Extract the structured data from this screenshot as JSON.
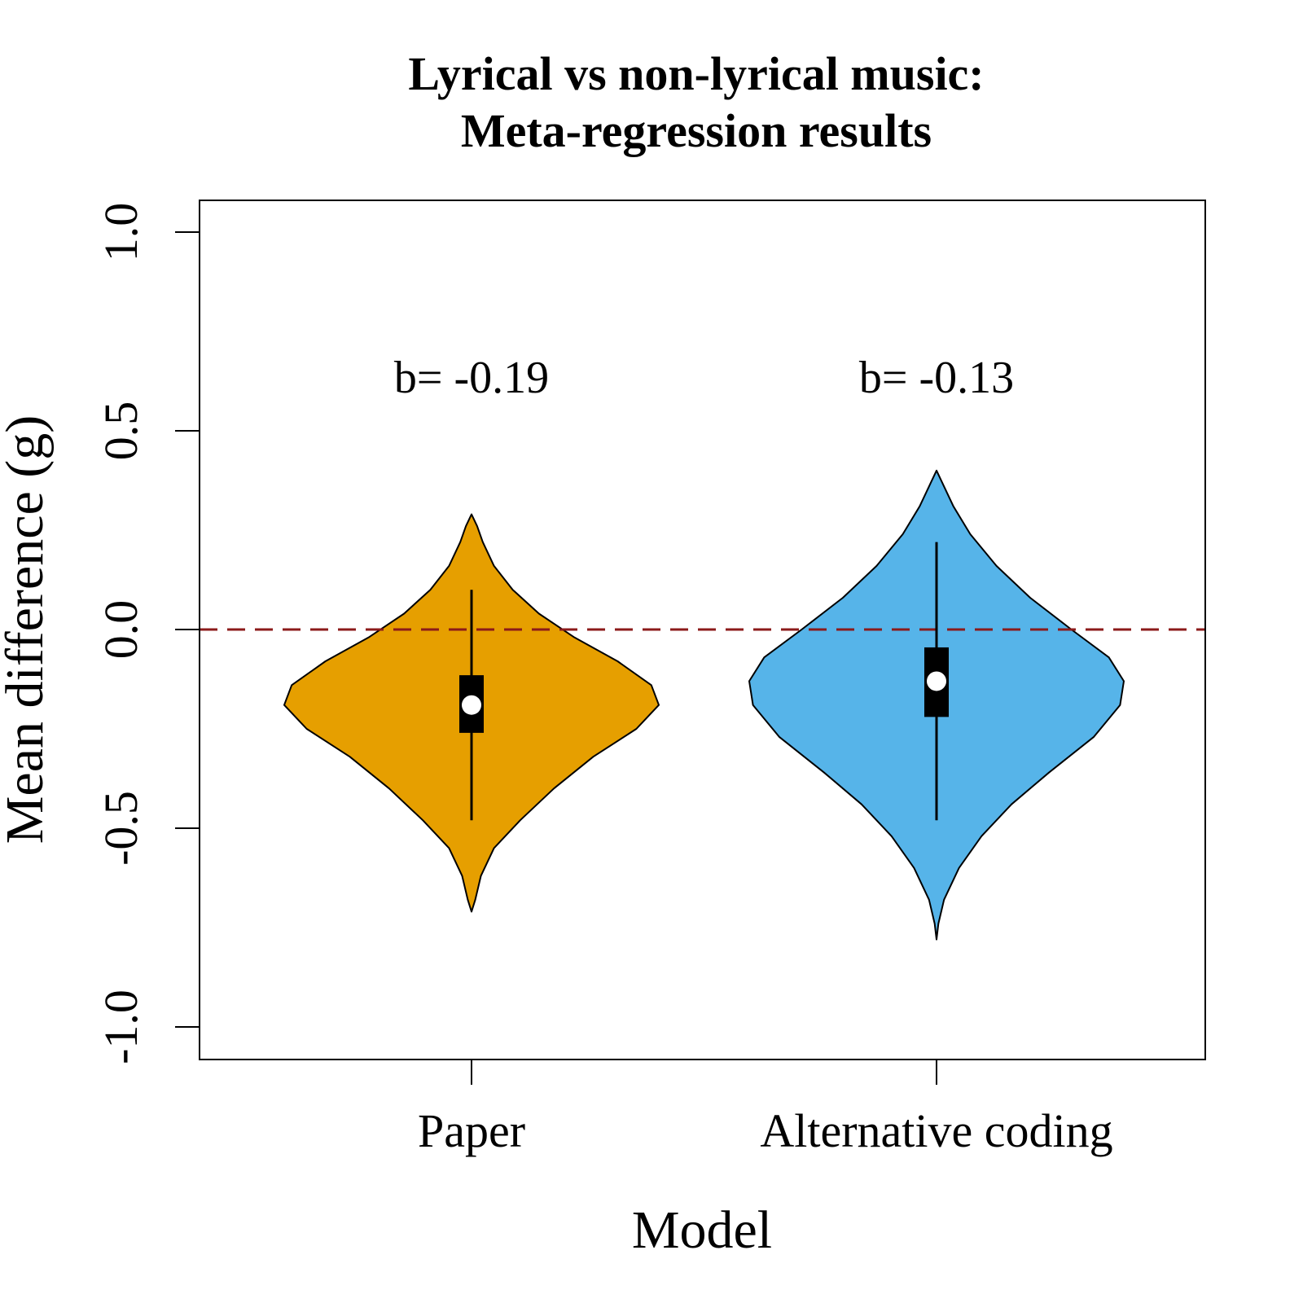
{
  "chart_data": {
    "type": "violin",
    "title": [
      "Lyrical vs non-lyrical music:",
      "Meta-regression results"
    ],
    "xlabel": "Model",
    "ylabel": "Mean difference (g)",
    "ylim": [
      -1.08,
      1.08
    ],
    "yticks": [
      -1.0,
      -0.5,
      0.0,
      0.5,
      1.0
    ],
    "ytick_labels": [
      "-1.0",
      "-0.5",
      "0.0",
      "0.5",
      "1.0"
    ],
    "reference_line": {
      "y": 0.0,
      "style": "dashed",
      "color": "#8b1a1a"
    },
    "categories": [
      "Paper",
      "Alternative coding"
    ],
    "series": [
      {
        "category": "Paper",
        "color": "#E69F00",
        "annotation": "b= -0.19",
        "median": -0.19,
        "q1": -0.26,
        "q3": -0.115,
        "whisker_low": -0.48,
        "whisker_high": 0.1,
        "density": [
          [
            -0.71,
            0.0
          ],
          [
            -0.68,
            0.02
          ],
          [
            -0.62,
            0.05
          ],
          [
            -0.55,
            0.12
          ],
          [
            -0.48,
            0.26
          ],
          [
            -0.4,
            0.44
          ],
          [
            -0.32,
            0.65
          ],
          [
            -0.25,
            0.88
          ],
          [
            -0.19,
            1.0
          ],
          [
            -0.14,
            0.96
          ],
          [
            -0.08,
            0.78
          ],
          [
            -0.02,
            0.55
          ],
          [
            0.04,
            0.36
          ],
          [
            0.1,
            0.22
          ],
          [
            0.16,
            0.12
          ],
          [
            0.22,
            0.06
          ],
          [
            0.26,
            0.03
          ],
          [
            0.29,
            0.0
          ]
        ]
      },
      {
        "category": "Alternative coding",
        "color": "#56B4E9",
        "annotation": "b= -0.13",
        "median": -0.13,
        "q1": -0.22,
        "q3": -0.045,
        "whisker_low": -0.48,
        "whisker_high": 0.22,
        "density": [
          [
            -0.78,
            0.0
          ],
          [
            -0.74,
            0.01
          ],
          [
            -0.68,
            0.04
          ],
          [
            -0.6,
            0.12
          ],
          [
            -0.52,
            0.24
          ],
          [
            -0.44,
            0.4
          ],
          [
            -0.36,
            0.6
          ],
          [
            -0.27,
            0.84
          ],
          [
            -0.19,
            0.98
          ],
          [
            -0.13,
            1.0
          ],
          [
            -0.07,
            0.92
          ],
          [
            0.0,
            0.72
          ],
          [
            0.08,
            0.5
          ],
          [
            0.16,
            0.32
          ],
          [
            0.24,
            0.18
          ],
          [
            0.31,
            0.09
          ],
          [
            0.36,
            0.04
          ],
          [
            0.4,
            0.0
          ]
        ]
      }
    ]
  }
}
